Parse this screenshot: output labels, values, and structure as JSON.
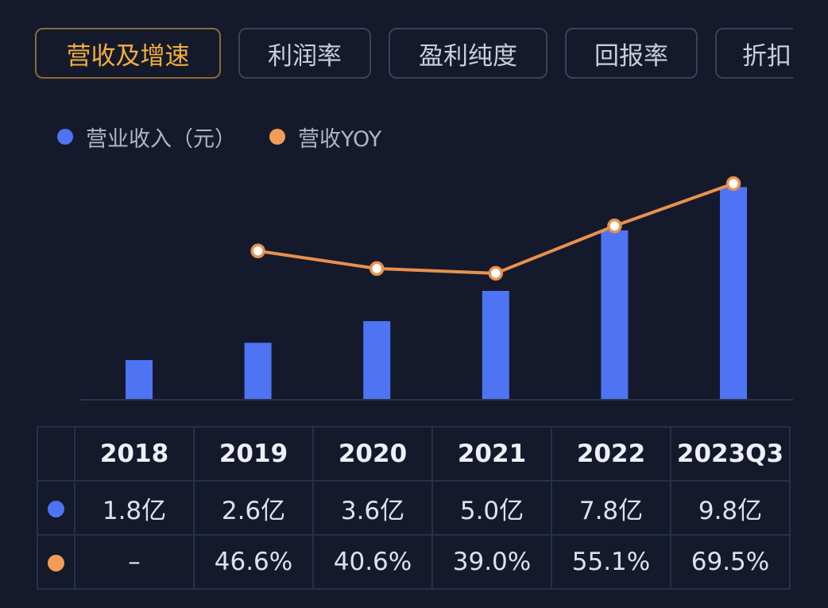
{
  "tabs": [
    {
      "label": "营收及增速",
      "active": true
    },
    {
      "label": "利润率",
      "active": false
    },
    {
      "label": "盈利纯度",
      "active": false
    },
    {
      "label": "回报率",
      "active": false
    },
    {
      "label": "折扣",
      "active": false
    }
  ],
  "legend": [
    {
      "label": "营业收入（元）",
      "color": "#4e74f3"
    },
    {
      "label": "营收YOY",
      "color": "#f29c56"
    }
  ],
  "chart_data": {
    "type": "bar",
    "categories": [
      "2018",
      "2019",
      "2020",
      "2021",
      "2022",
      "2023Q3"
    ],
    "series": [
      {
        "name": "营业收入（元）",
        "type": "bar",
        "unit": "亿",
        "color": "#4e74f3",
        "values": [
          1.8,
          2.6,
          3.6,
          5.0,
          7.8,
          9.8
        ]
      },
      {
        "name": "营收YOY",
        "type": "line",
        "unit": "%",
        "color": "#f29c56",
        "values": [
          null,
          46.6,
          40.6,
          39.0,
          55.1,
          69.5
        ]
      }
    ]
  },
  "table": {
    "years": [
      "2018",
      "2019",
      "2020",
      "2021",
      "2022",
      "2023Q3"
    ],
    "revenue": [
      "1.8亿",
      "2.6亿",
      "3.6亿",
      "5.0亿",
      "7.8亿",
      "9.8亿"
    ],
    "yoy": [
      "–",
      "46.6%",
      "40.6%",
      "39.0%",
      "55.1%",
      "69.5%"
    ]
  }
}
